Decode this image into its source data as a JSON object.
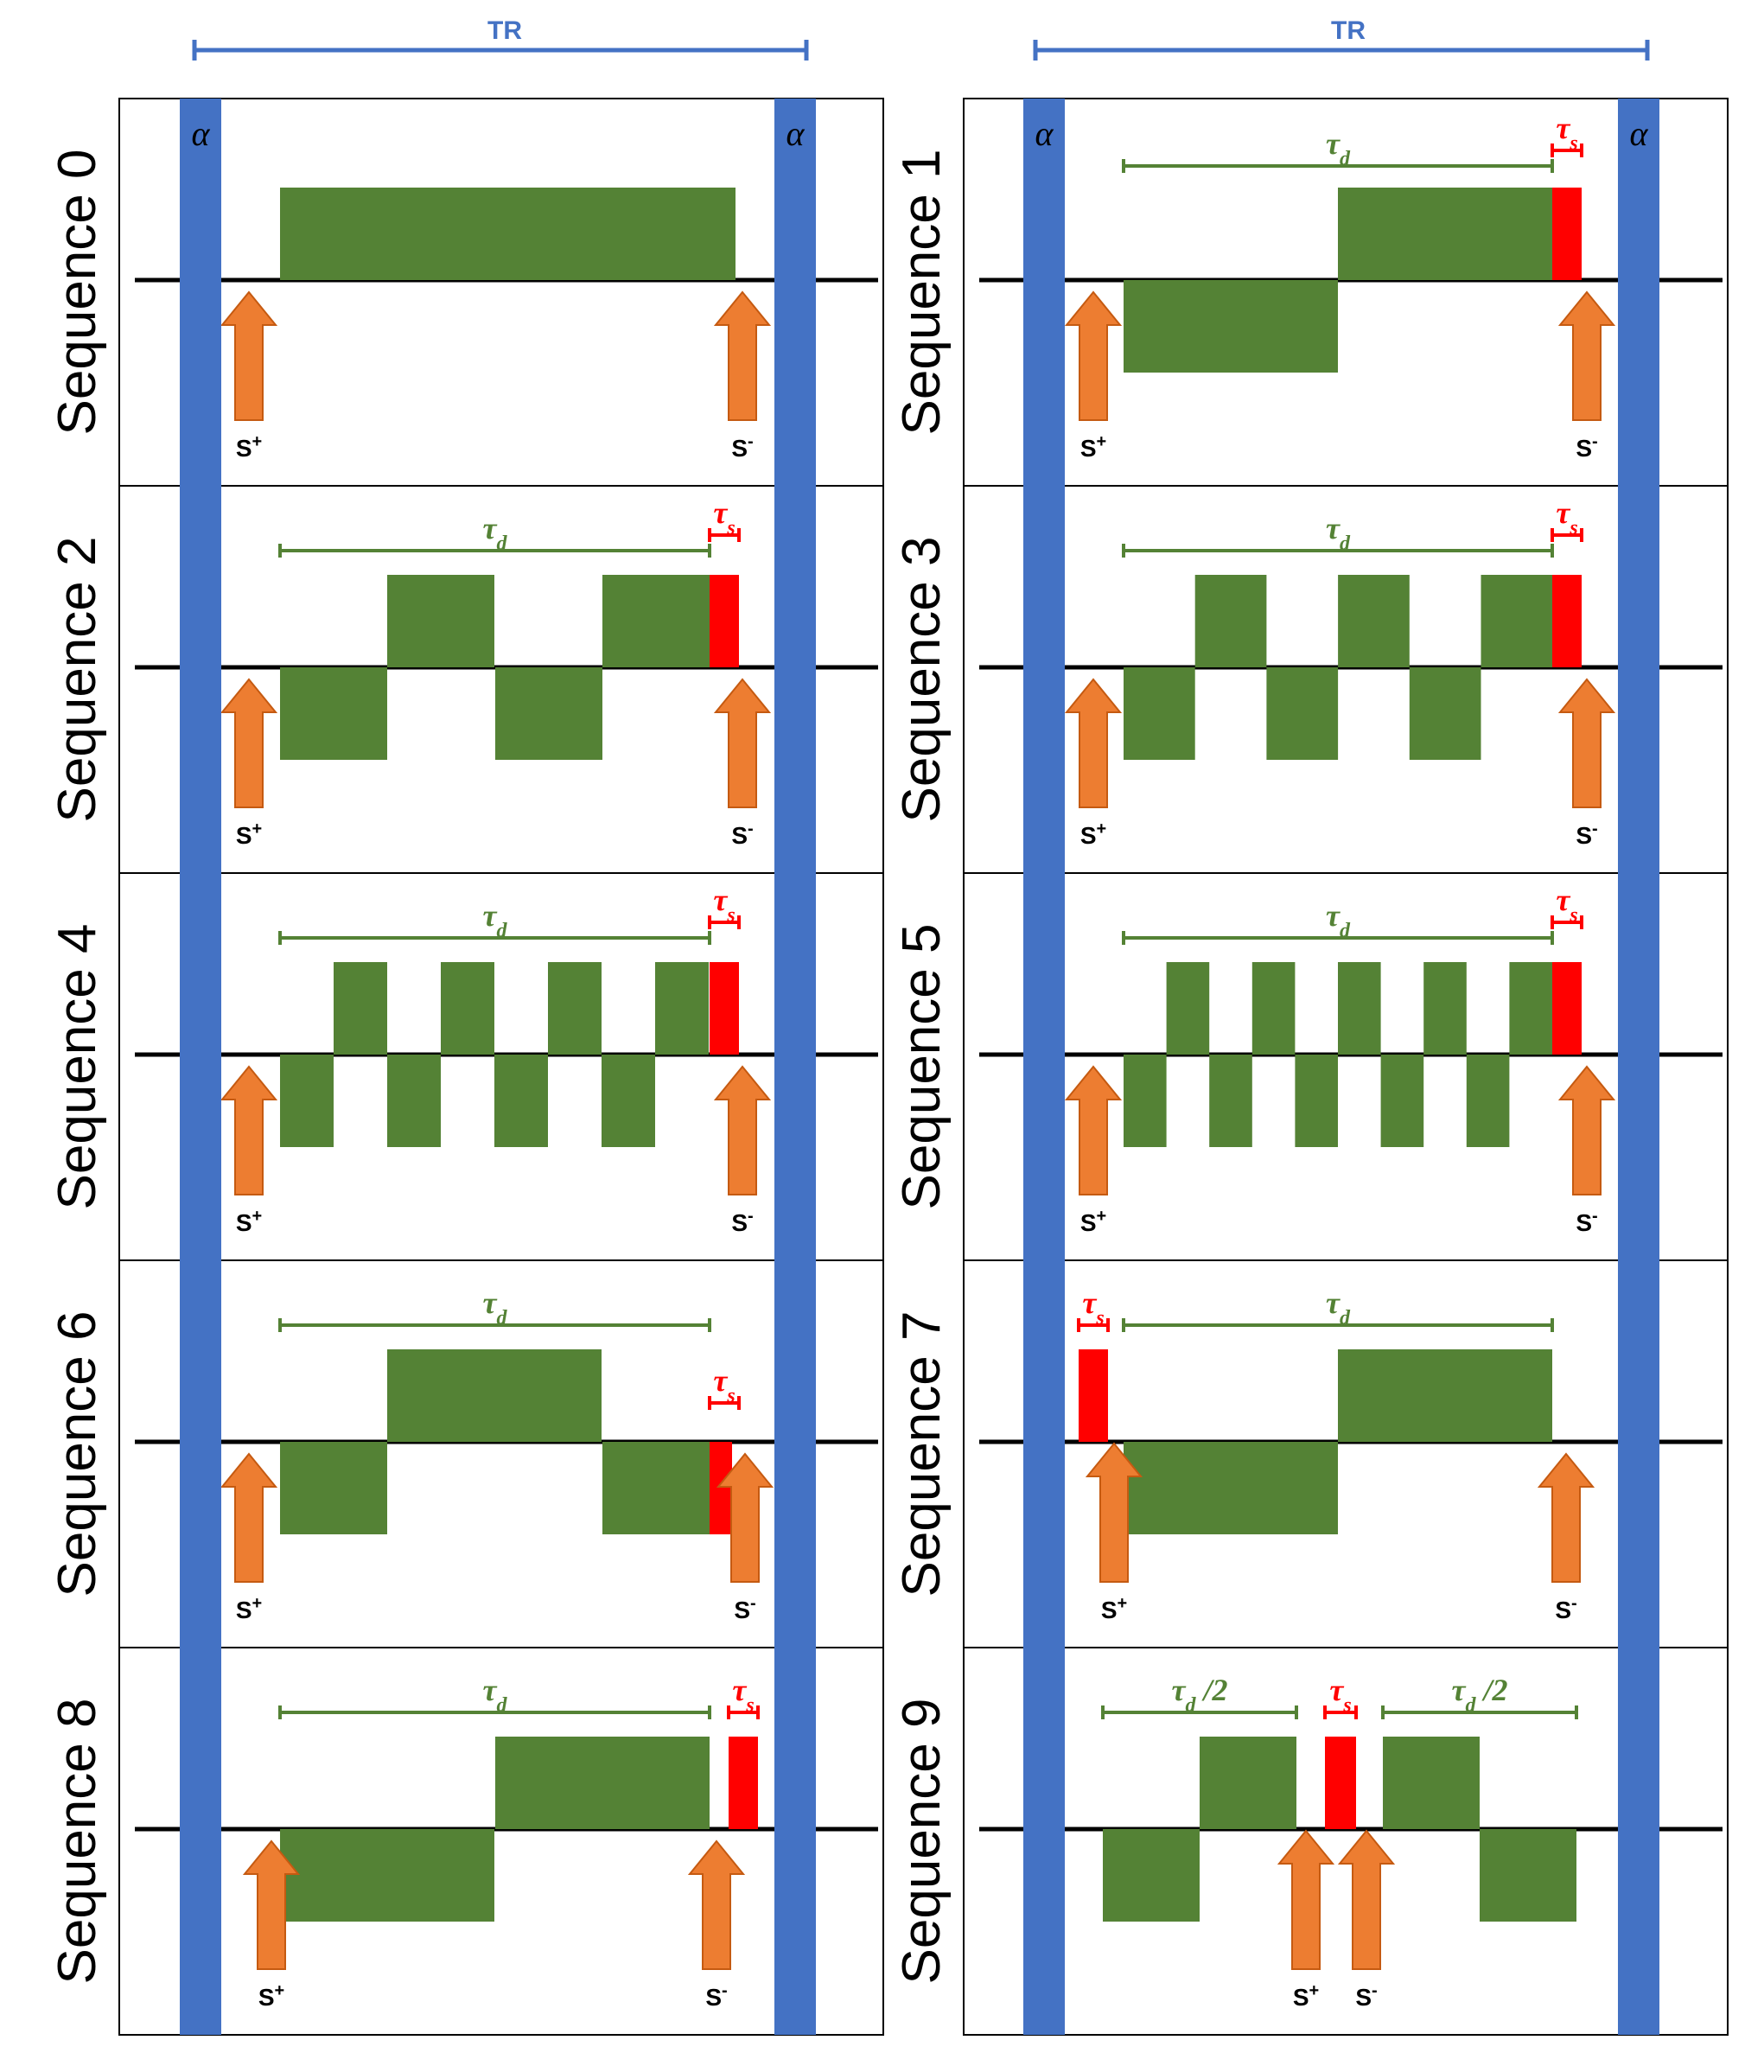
{
  "colors": {
    "alpha_bar": "#4472C4",
    "tr_line": "#4472C4",
    "gradient": "#548235",
    "spoiler": "#FF0000",
    "arrow": "#ED7D31",
    "arrow_edge": "#C55A11",
    "axis": "#000000"
  },
  "tr_label": "TR",
  "alpha_label": "α",
  "labels": {
    "s_plus": "S",
    "s_plus_sup": "+",
    "s_minus": "S",
    "s_minus_sup": "-",
    "tau_d": "τ",
    "tau_d_sub": "d",
    "tau_s": "τ",
    "tau_s_sub": "s",
    "tau_d_half_suffix": " /2"
  },
  "sequences": [
    {
      "name": "Sequence 0"
    },
    {
      "name": "Sequence 1"
    },
    {
      "name": "Sequence 2"
    },
    {
      "name": "Sequence 3"
    },
    {
      "name": "Sequence 4"
    },
    {
      "name": "Sequence 5"
    },
    {
      "name": "Sequence 6"
    },
    {
      "name": "Sequence 7"
    },
    {
      "name": "Sequence 8"
    },
    {
      "name": "Sequence 9"
    }
  ]
}
